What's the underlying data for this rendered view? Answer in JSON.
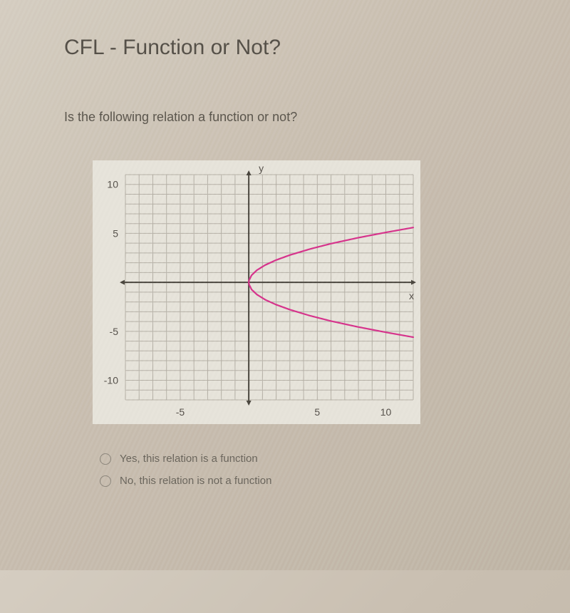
{
  "title": "CFL - Function or Not?",
  "question": "Is the following relation a function or not?",
  "options": [
    "Yes, this relation is a function",
    "No, this relation is not a function"
  ],
  "chart": {
    "type": "line",
    "background_color": "#e6e3da",
    "plot_background": "#e6e3da",
    "grid_color": "#b5b0a6",
    "axis_color": "#4a463e",
    "curve_color": "#d6338b",
    "curve_width": 2.2,
    "x_axis_label": "x",
    "y_axis_label": "y",
    "xlim": [
      -9,
      12
    ],
    "ylim": [
      -12,
      11
    ],
    "x_ticks": [
      -5,
      5,
      10
    ],
    "x_tick_labels": [
      "-5",
      "5",
      "10"
    ],
    "y_ticks": [
      -10,
      -5,
      5,
      10
    ],
    "y_tick_labels": [
      "-10",
      "-5",
      "5",
      "10"
    ],
    "tick_fontsize": 14,
    "axis_label_fontsize": 14,
    "grid_step": 1,
    "curve": {
      "comment": "sideways parabola x = y^2/2.6, sampled",
      "points": [
        [
          12,
          5.6
        ],
        [
          10,
          5.1
        ],
        [
          8,
          4.56
        ],
        [
          6,
          3.95
        ],
        [
          4.5,
          3.42
        ],
        [
          3,
          2.79
        ],
        [
          2,
          2.28
        ],
        [
          1.2,
          1.77
        ],
        [
          0.6,
          1.25
        ],
        [
          0.2,
          0.72
        ],
        [
          0.02,
          0.2
        ],
        [
          0,
          0
        ],
        [
          0.02,
          -0.2
        ],
        [
          0.2,
          -0.72
        ],
        [
          0.6,
          -1.25
        ],
        [
          1.2,
          -1.77
        ],
        [
          2,
          -2.28
        ],
        [
          3,
          -2.79
        ],
        [
          4.5,
          -3.42
        ],
        [
          6,
          -3.95
        ],
        [
          8,
          -4.56
        ],
        [
          10,
          -5.1
        ],
        [
          12,
          -5.6
        ]
      ]
    }
  }
}
